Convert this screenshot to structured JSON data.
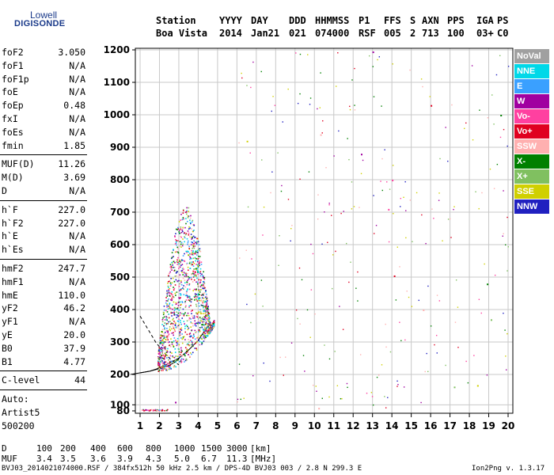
{
  "logo": {
    "line1": "Lowell",
    "line2": "DIGISONDE"
  },
  "header": {
    "columns": [
      "Station",
      "YYYY",
      "DAY",
      "DDD",
      "HHMMSS",
      "P1",
      "FFS",
      "S",
      "AXN",
      "PPS",
      "IGA",
      "PS"
    ],
    "values": [
      "Boa Vista",
      "2014",
      "Jan21",
      "021",
      "074000",
      "RSF",
      "005",
      "2",
      "713",
      "100",
      "03+",
      "C0"
    ]
  },
  "params": {
    "group1": [
      {
        "label": "foF2",
        "value": "3.050"
      },
      {
        "label": "foF1",
        "value": "N/A"
      },
      {
        "label": "foF1p",
        "value": "N/A"
      },
      {
        "label": "foE",
        "value": "N/A"
      },
      {
        "label": "foEp",
        "value": "0.48"
      },
      {
        "label": "fxI",
        "value": "N/A"
      },
      {
        "label": "foEs",
        "value": "N/A"
      },
      {
        "label": "fmin",
        "value": "1.85"
      }
    ],
    "group2": [
      {
        "label": "MUF(D)",
        "value": "11.26"
      },
      {
        "label": "M(D)",
        "value": "3.69"
      },
      {
        "label": "D",
        "value": "N/A"
      }
    ],
    "group3": [
      {
        "label": "h`F",
        "value": "227.0"
      },
      {
        "label": "h`F2",
        "value": "227.0"
      },
      {
        "label": "h`E",
        "value": "N/A"
      },
      {
        "label": "h`Es",
        "value": "N/A"
      }
    ],
    "group4": [
      {
        "label": "hmF2",
        "value": "247.7"
      },
      {
        "label": "hmF1",
        "value": "N/A"
      },
      {
        "label": "hmE",
        "value": "110.0"
      },
      {
        "label": "yF2",
        "value": "46.2"
      },
      {
        "label": "yF1",
        "value": "N/A"
      },
      {
        "label": "yE",
        "value": "20.0"
      },
      {
        "label": "B0",
        "value": "37.9"
      },
      {
        "label": "B1",
        "value": "4.77"
      }
    ],
    "clevel": {
      "label": "C-level",
      "value": "44"
    },
    "auto": [
      "Auto:",
      "Artist5",
      "500200"
    ]
  },
  "legend": [
    {
      "label": "NoVal",
      "color": "#a0a0a0"
    },
    {
      "label": "NNE",
      "color": "#00d8e8"
    },
    {
      "label": "E",
      "color": "#3aa0ff"
    },
    {
      "label": "W",
      "color": "#a000a0"
    },
    {
      "label": "Vo-",
      "color": "#ff40a0"
    },
    {
      "label": "Vo+",
      "color": "#e00020"
    },
    {
      "label": "SSW",
      "color": "#ffb0b0"
    },
    {
      "label": "X-",
      "color": "#008000"
    },
    {
      "label": "X+",
      "color": "#80c060"
    },
    {
      "label": "SSE",
      "color": "#d0d000"
    },
    {
      "label": "NNW",
      "color": "#2020c0"
    }
  ],
  "footer": {
    "d_label": "D",
    "d_values": [
      "100",
      "200",
      "400",
      "600",
      "800",
      "1000",
      "1500",
      "3000"
    ],
    "d_unit": "[km]",
    "muf_label": "MUF",
    "muf_values": [
      "3.4",
      "3.5",
      "3.6",
      "3.9",
      "4.3",
      "5.0",
      "6.7",
      "11.3"
    ],
    "muf_unit": "[MHz]",
    "file_info": "BVJ03_2014021074000.RSF / 384fx512h 50 kHz 2.5 km / DPS-4D BVJ03 003 / 2.8 N 299.3 E",
    "version": "Ion2Png v. 1.3.17"
  },
  "chart_data": {
    "type": "scatter",
    "title": "",
    "xlabel": "",
    "ylabel": "",
    "xlim": [
      0.5,
      20
    ],
    "ylim": [
      80,
      1200
    ],
    "x_ticks": [
      1,
      2,
      3,
      4,
      5,
      6,
      7,
      8,
      9,
      10,
      11,
      12,
      13,
      14,
      15,
      16,
      17,
      18,
      19,
      20
    ],
    "y_ticks": [
      80,
      100,
      200,
      300,
      400,
      500,
      600,
      700,
      800,
      900,
      1000,
      1100,
      1200
    ],
    "grid": true,
    "legend_position": "right",
    "trace_profile": {
      "x": [
        0.5,
        1.5,
        2.0,
        2.5,
        2.8,
        3.0,
        3.05
      ],
      "y": [
        200,
        210,
        218,
        228,
        238,
        248,
        256
      ]
    },
    "trace_virtual": {
      "x": [
        1.0,
        1.5,
        2.0,
        2.5,
        3.0,
        3.5,
        4.0,
        4.5
      ],
      "y": [
        205,
        210,
        220,
        235,
        250,
        275,
        305,
        350
      ]
    },
    "trace_dashed": {
      "x": [
        1.0,
        1.4,
        1.8,
        2.2,
        2.6,
        3.0
      ],
      "y": [
        380,
        340,
        300,
        270,
        245,
        230
      ]
    },
    "echo_cluster": {
      "x_range": [
        1.9,
        4.8
      ],
      "y_range": [
        200,
        760
      ],
      "note": ""
    },
    "scattered_echoes": [
      {
        "x": 13.0,
        "y": 1195
      },
      {
        "x": 14.0,
        "y": 800
      },
      {
        "x": 16.0,
        "y": 1030
      },
      {
        "x": 10.3,
        "y": 940
      },
      {
        "x": 19.6,
        "y": 1000
      },
      {
        "x": 17.2,
        "y": 160
      },
      {
        "x": 18.4,
        "y": 165
      },
      {
        "x": 12.4,
        "y": 880
      },
      {
        "x": 13.8,
        "y": 710
      },
      {
        "x": 14.1,
        "y": 505
      },
      {
        "x": 15.6,
        "y": 400
      },
      {
        "x": 18.9,
        "y": 480
      },
      {
        "x": 19.1,
        "y": 370
      },
      {
        "x": 6.5,
        "y": 920
      },
      {
        "x": 2.8,
        "y": 110
      },
      {
        "x": 1.4,
        "y": 84
      },
      {
        "x": 2.1,
        "y": 84
      },
      {
        "x": 10.2,
        "y": 90
      }
    ]
  }
}
